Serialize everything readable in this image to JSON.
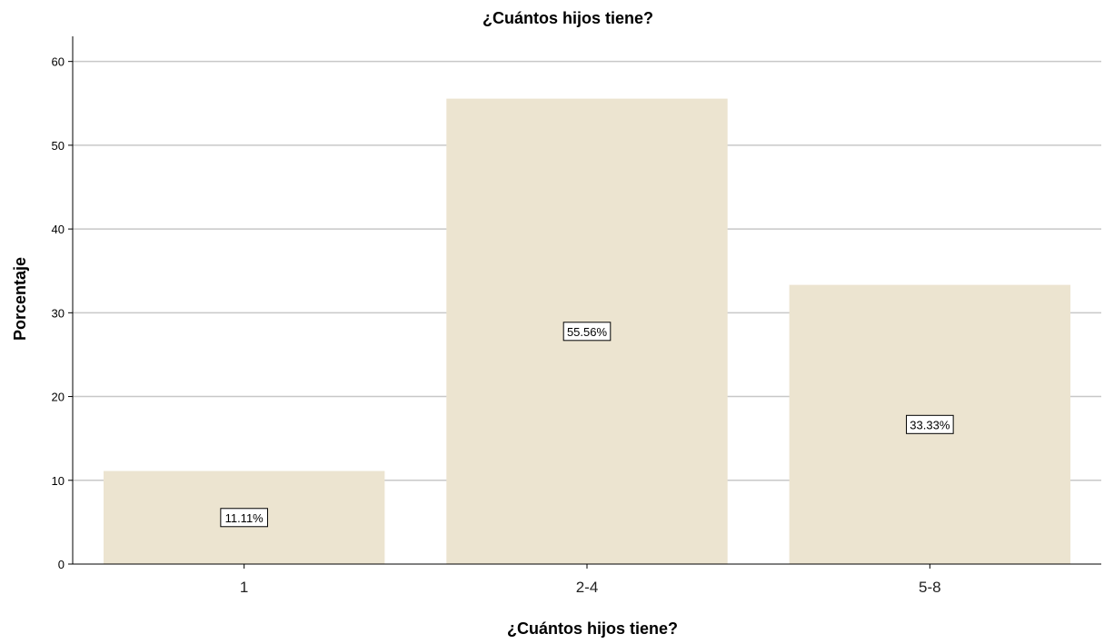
{
  "chart_data": {
    "type": "bar",
    "title": "¿Cuántos hijos tiene?",
    "xlabel": "¿Cuántos hijos tiene?",
    "ylabel": "Porcentaje",
    "categories": [
      "1",
      "2-4",
      "5-8"
    ],
    "values": [
      11.11,
      55.56,
      33.33
    ],
    "data_labels": [
      "11.11%",
      "55.56%",
      "33.33%"
    ],
    "yticks": [
      0,
      10,
      20,
      30,
      40,
      50,
      60
    ],
    "ylim": [
      0,
      63
    ],
    "grid": true,
    "legend": "none",
    "bar_color": "#ece4d0",
    "grid_color": "#c8c8c8",
    "axis_color": "#000000"
  }
}
